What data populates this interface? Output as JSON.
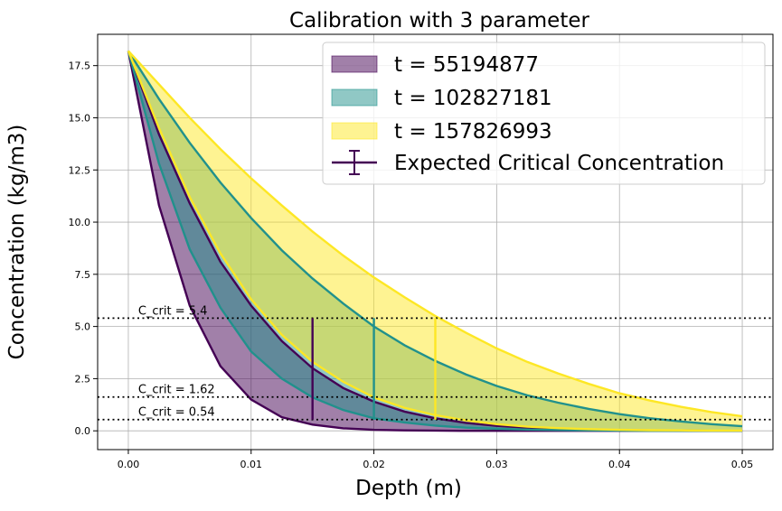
{
  "chart_data": {
    "type": "area",
    "title": "Calibration with 3 parameter",
    "xlabel": "Depth (m)",
    "ylabel": "Concentration (kg/m3)",
    "xlim": [
      -0.0025,
      0.0525
    ],
    "ylim": [
      -0.9,
      19.0
    ],
    "x_ticks": [
      0.0,
      0.01,
      0.02,
      0.03,
      0.04,
      0.05
    ],
    "x_tick_labels": [
      "0.00",
      "0.01",
      "0.02",
      "0.03",
      "0.04",
      "0.05"
    ],
    "y_ticks": [
      0.0,
      2.5,
      5.0,
      7.5,
      10.0,
      12.5,
      15.0,
      17.5
    ],
    "y_tick_labels": [
      "0.0",
      "2.5",
      "5.0",
      "7.5",
      "10.0",
      "12.5",
      "15.0",
      "17.5"
    ],
    "grid": true,
    "legend_position": "top-right",
    "x": [
      0.0,
      0.0025,
      0.005,
      0.0075,
      0.01,
      0.0125,
      0.015,
      0.0175,
      0.02,
      0.0225,
      0.025,
      0.0275,
      0.03,
      0.0325,
      0.035,
      0.0375,
      0.04,
      0.0425,
      0.045,
      0.0475,
      0.05
    ],
    "series": [
      {
        "name": "t = 55194877",
        "color": "#440154",
        "fill_alpha": 0.5,
        "lower": [
          18.2,
          10.8,
          6.0,
          3.1,
          1.5,
          0.65,
          0.3,
          0.12,
          0.05,
          0.02,
          0.01,
          0.0,
          0.0,
          0.0,
          0.0,
          0.0,
          0.0,
          0.0,
          0.0,
          0.0,
          0.0
        ],
        "upper": [
          18.2,
          14.2,
          10.9,
          8.1,
          6.0,
          4.3,
          3.0,
          2.05,
          1.4,
          0.92,
          0.6,
          0.38,
          0.24,
          0.15,
          0.09,
          0.05,
          0.03,
          0.02,
          0.01,
          0.0,
          0.0
        ]
      },
      {
        "name": "t = 102827181",
        "color": "#21918c",
        "fill_alpha": 0.5,
        "lower": [
          18.2,
          12.8,
          8.7,
          5.9,
          3.8,
          2.5,
          1.6,
          1.0,
          0.6,
          0.4,
          0.25,
          0.15,
          0.1,
          0.06,
          0.04,
          0.02,
          0.01,
          0.0,
          0.0,
          0.0,
          0.0
        ],
        "upper": [
          18.2,
          15.9,
          13.8,
          11.9,
          10.2,
          8.65,
          7.3,
          6.1,
          5.0,
          4.1,
          3.35,
          2.7,
          2.15,
          1.7,
          1.35,
          1.05,
          0.8,
          0.6,
          0.45,
          0.32,
          0.22
        ]
      },
      {
        "name": "t = 157826993",
        "color": "#fde725",
        "fill_alpha": 0.5,
        "lower": [
          18.2,
          14.5,
          11.2,
          8.5,
          6.3,
          4.6,
          3.3,
          2.35,
          1.6,
          1.1,
          0.75,
          0.5,
          0.32,
          0.2,
          0.13,
          0.08,
          0.05,
          0.03,
          0.02,
          0.01,
          0.01
        ],
        "upper": [
          18.2,
          16.6,
          15.0,
          13.5,
          12.1,
          10.8,
          9.55,
          8.4,
          7.35,
          6.4,
          5.5,
          4.7,
          3.95,
          3.3,
          2.75,
          2.25,
          1.8,
          1.45,
          1.15,
          0.9,
          0.7
        ]
      }
    ],
    "expected_critical": {
      "name": "Expected Critical Concentration",
      "color": "#440154",
      "errorbars": [
        {
          "x": 0.015,
          "y_low": 0.54,
          "y_high": 5.4,
          "color": "#440154"
        },
        {
          "x": 0.02,
          "y_low": 0.54,
          "y_high": 5.4,
          "color": "#21918c"
        },
        {
          "x": 0.025,
          "y_low": 0.54,
          "y_high": 5.4,
          "color": "#fde725"
        }
      ]
    },
    "critical_lines": [
      {
        "value": 5.4,
        "label": "C_crit = 5.4"
      },
      {
        "value": 1.62,
        "label": "C_crit = 1.62"
      },
      {
        "value": 0.54,
        "label": "C_crit = 0.54"
      }
    ]
  }
}
